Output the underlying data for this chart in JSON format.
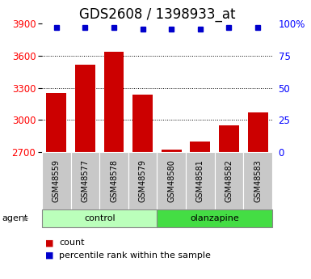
{
  "title": "GDS2608 / 1398933_at",
  "categories": [
    "GSM48559",
    "GSM48577",
    "GSM48578",
    "GSM48579",
    "GSM48580",
    "GSM48581",
    "GSM48582",
    "GSM48583"
  ],
  "bar_values": [
    3250,
    3520,
    3640,
    3240,
    2720,
    2800,
    2950,
    3070
  ],
  "bar_color": "#cc0000",
  "percentile_values": [
    97,
    97,
    97,
    96,
    96,
    96,
    97,
    97
  ],
  "percentile_color": "#0000cc",
  "ylim_left": [
    2700,
    3900
  ],
  "ylim_right": [
    0,
    100
  ],
  "yticks_left": [
    2700,
    3000,
    3300,
    3600,
    3900
  ],
  "yticks_right": [
    0,
    25,
    50,
    75,
    100
  ],
  "ytick_labels_right": [
    "0",
    "25",
    "50",
    "75",
    "100%"
  ],
  "groups": [
    {
      "label": "control",
      "start": 0,
      "end": 3,
      "color": "#bbffbb"
    },
    {
      "label": "olanzapine",
      "start": 4,
      "end": 7,
      "color": "#44dd44"
    }
  ],
  "agent_label": "agent",
  "legend_count_label": "count",
  "legend_pct_label": "percentile rank within the sample",
  "bar_width": 0.7,
  "tick_bg_color": "#c8c8c8",
  "title_fontsize": 12,
  "axis_fontsize": 8.5,
  "legend_fontsize": 8
}
